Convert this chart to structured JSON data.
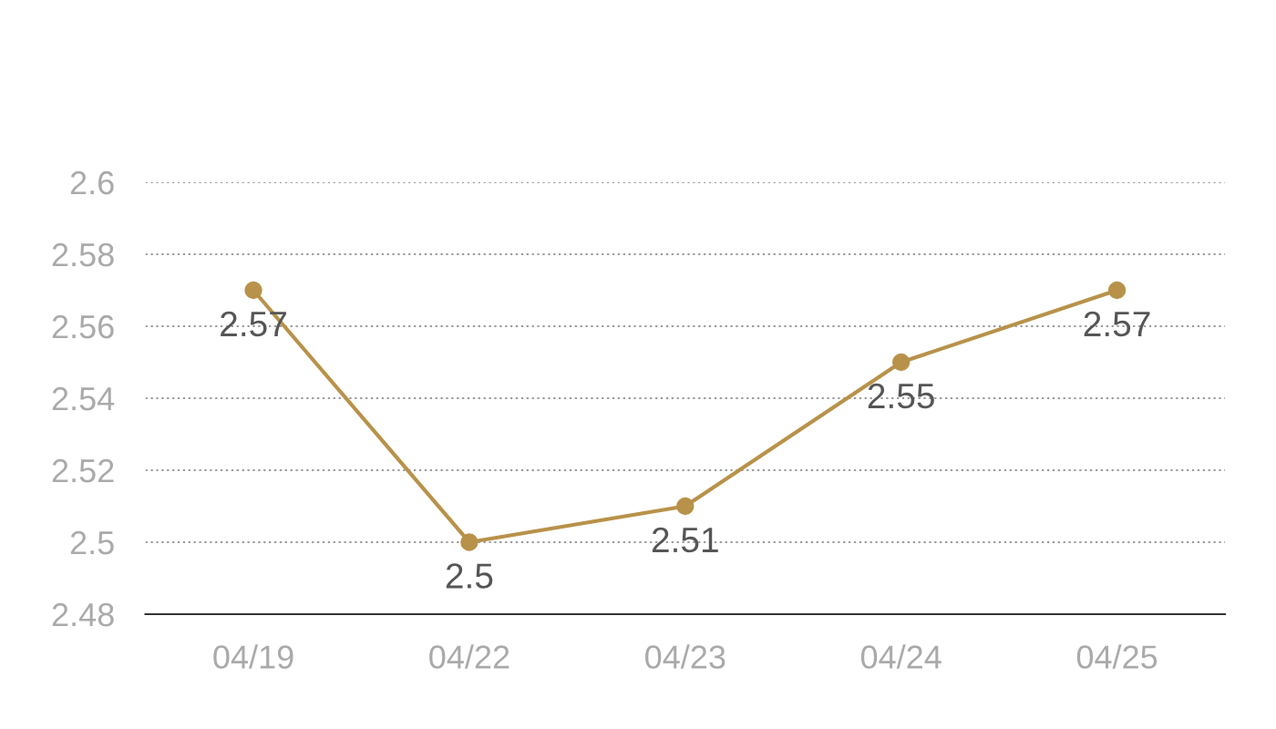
{
  "chart_data": {
    "type": "line",
    "categories": [
      "04/19",
      "04/22",
      "04/23",
      "04/24",
      "04/25"
    ],
    "series": [
      {
        "color": "#b8924a",
        "values": [
          2.57,
          2.5,
          2.51,
          2.55,
          2.57
        ]
      }
    ],
    "ylim": [
      2.48,
      2.6
    ],
    "yticks": [
      2.48,
      2.5,
      2.52,
      2.54,
      2.56,
      2.58,
      2.6
    ],
    "grid": "y",
    "marker": "circle",
    "data_labels": true
  }
}
